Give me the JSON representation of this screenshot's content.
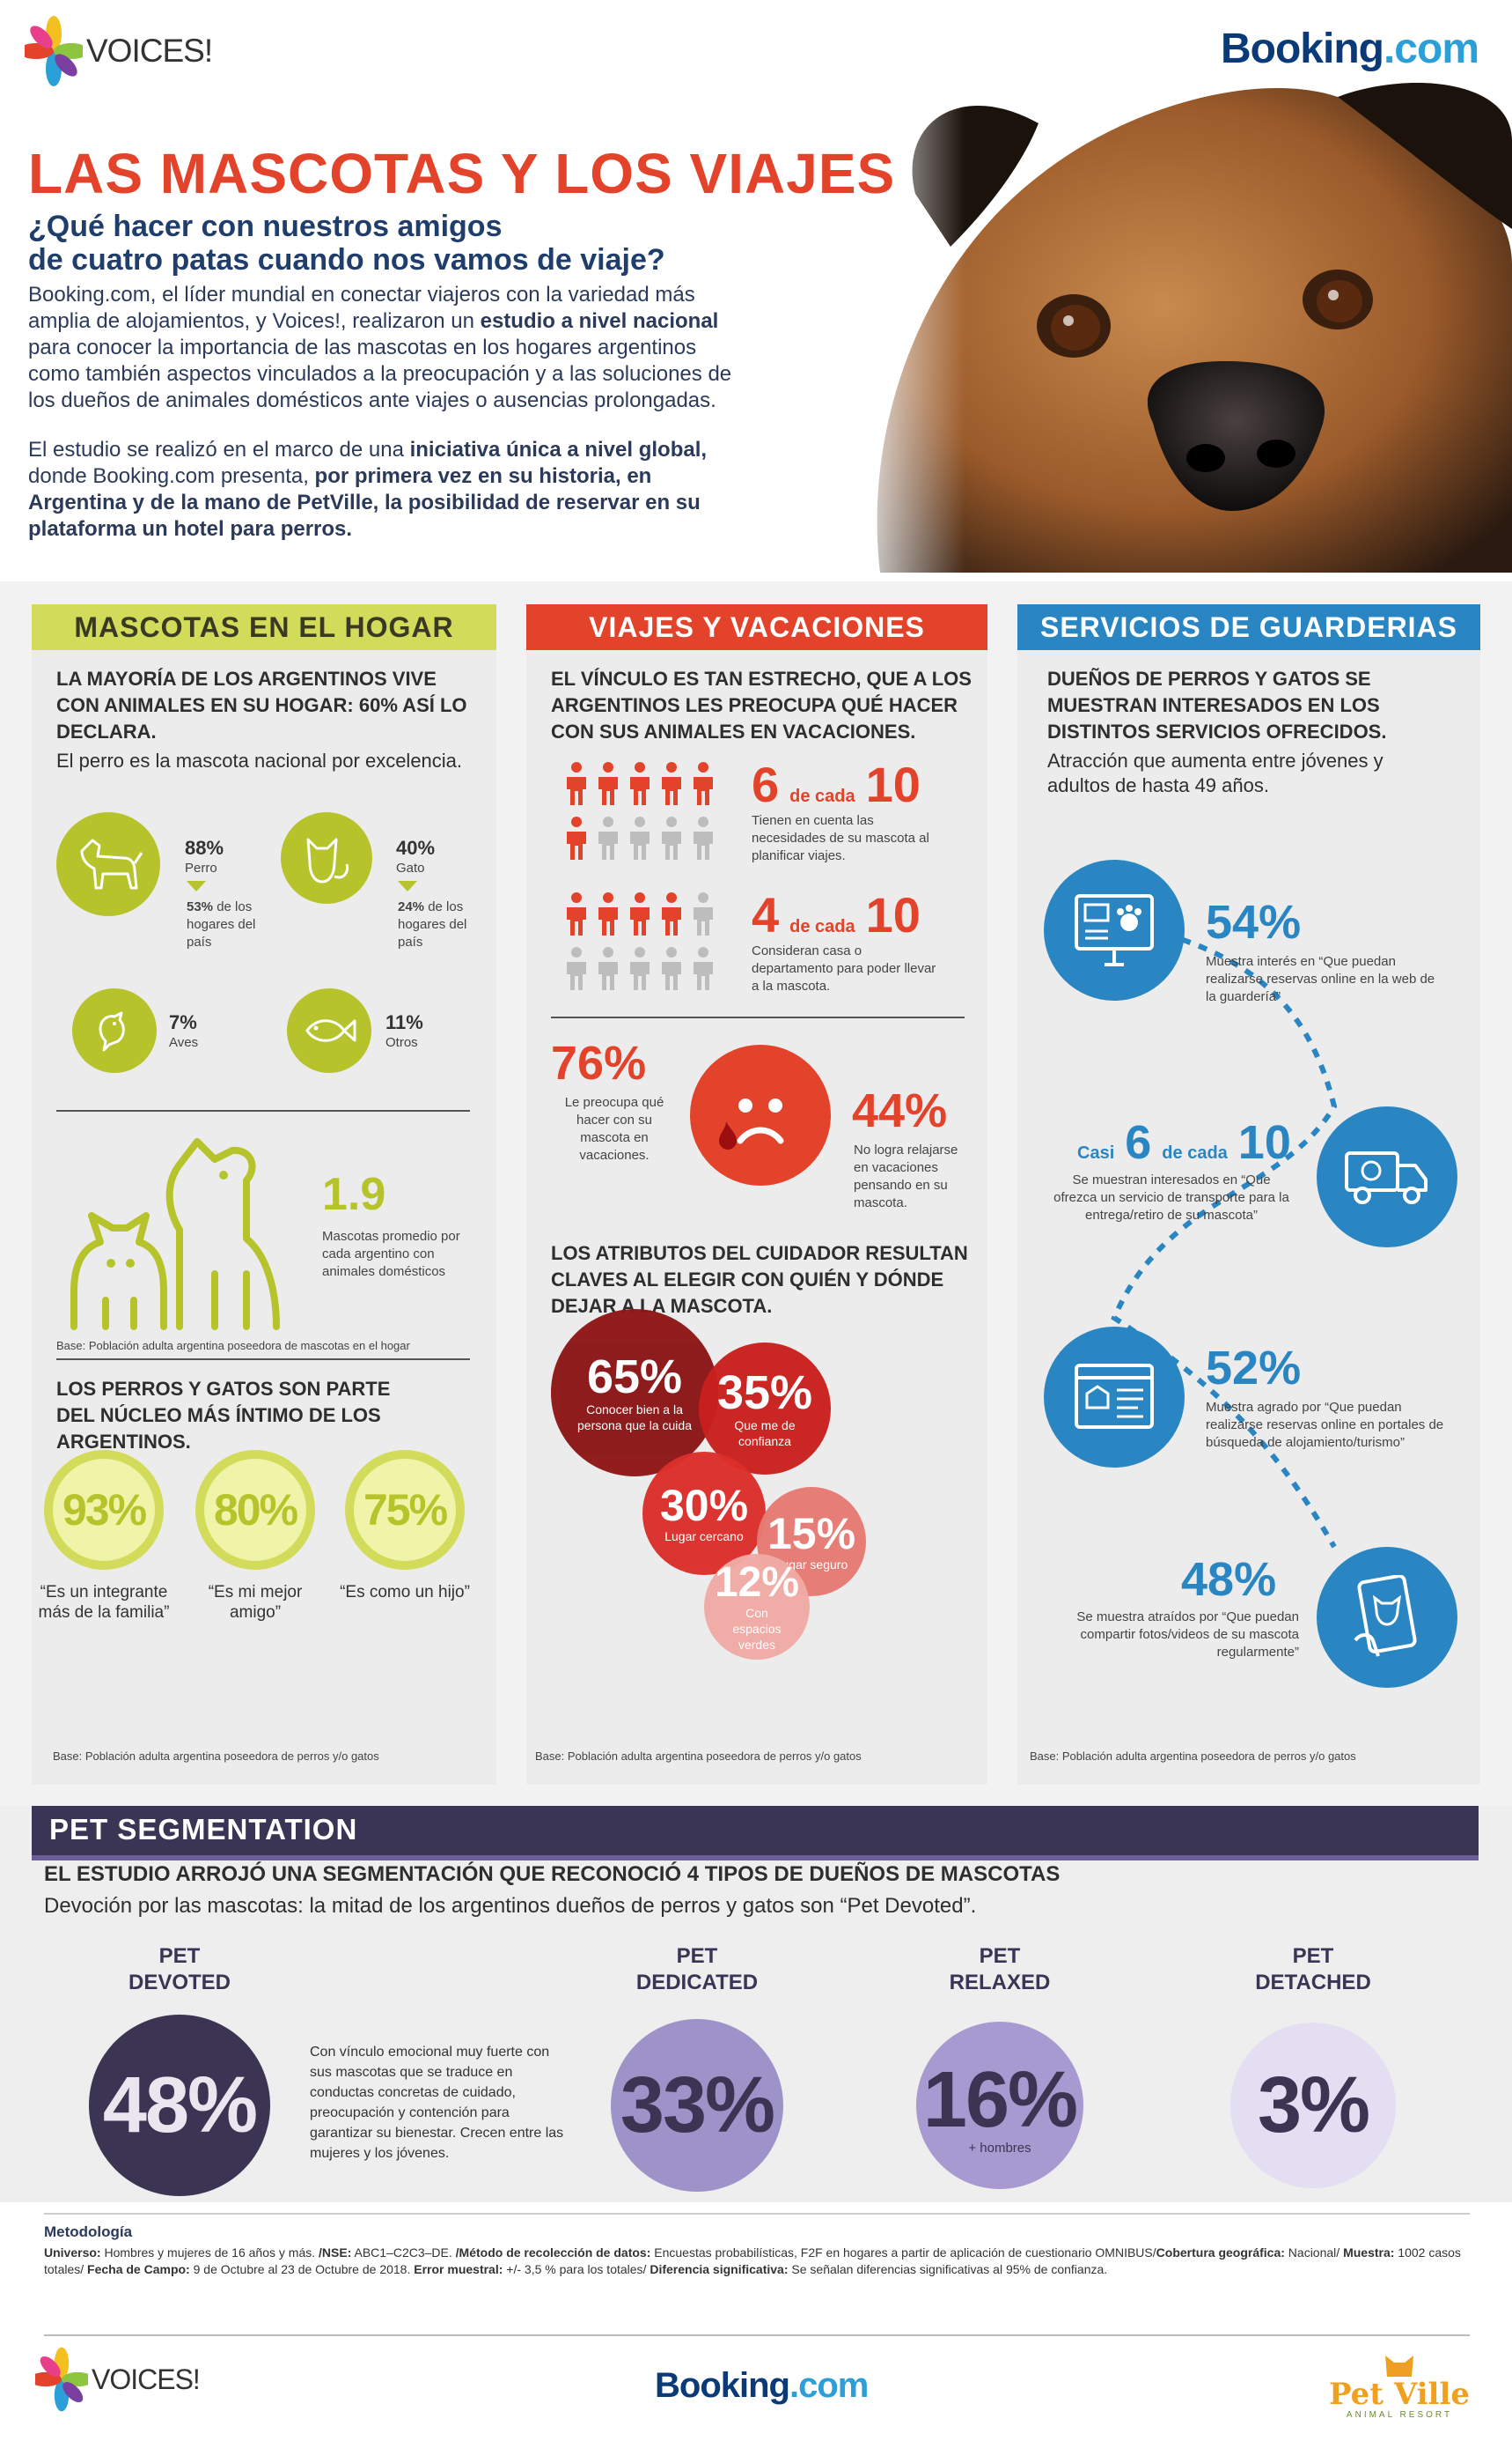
{
  "header": {
    "voices_logo": "VOICES!",
    "booking_logo_main": "Booking",
    "booking_logo_dot": ".com",
    "title": "LAS MASCOTAS Y LOS VIAJES",
    "subtitle_line1": "¿Qué hacer con nuestros amigos",
    "subtitle_line2": "de cuatro patas cuando nos vamos de viaje?",
    "intro1_a": "Booking.com, el líder mundial en conectar viajeros con la variedad más amplia de alojamientos, y Voices!, realizaron un ",
    "intro1_b": "estudio a nivel nacional",
    "intro1_c": " para conocer la importancia de las mascotas en los hogares argentinos como también aspectos vinculados a la preocupación y a las soluciones de los dueños de animales domésticos ante viajes o ausencias prolongadas.",
    "intro2_a": "El estudio se realizó en el marco de una ",
    "intro2_b": "iniciativa única a nivel global,",
    "intro2_c": " donde Booking.com presenta, ",
    "intro2_d": "por primera vez en su historia, en Argentina y de la mano de PetVille, la posibilidad de reservar en su plataforma un hotel para perros."
  },
  "col1": {
    "header": "MASCOTAS EN EL HOGAR",
    "lead": "LA MAYORÍA DE LOS ARGENTINOS VIVE CON ANIMALES EN SU HOGAR: 60% ASÍ LO DECLARA.",
    "sub": "El perro es la mascota nacional por excelencia.",
    "dog_pct": "88%",
    "dog_label": "Perro",
    "dog_homes_pct": "53%",
    "dog_homes_text": " de los hogares del país",
    "cat_pct": "40%",
    "cat_label": "Gato",
    "cat_homes_pct": "24%",
    "cat_homes_text": " de los hogares del país",
    "bird_pct": "7%",
    "bird_label": "Aves",
    "fish_pct": "11%",
    "fish_label": "Otros",
    "avg_value": "1.9",
    "avg_text": "Mascotas promedio por cada argentino con animales domésticos",
    "base1": "Base: Población adulta argentina poseedora de mascotas en el hogar",
    "lead2": "LOS PERROS Y GATOS SON PARTE DEL NÚCLEO MÁS ÍNTIMO DE LOS ARGENTINOS.",
    "rings": [
      {
        "pct": "93%",
        "label": "“Es un integrante más de la familia”"
      },
      {
        "pct": "80%",
        "label": "“Es mi mejor amigo”"
      },
      {
        "pct": "75%",
        "label": "“Es como un hijo”"
      }
    ],
    "base2": "Base: Población adulta argentina poseedora de perros y/o gatos",
    "color": "#b6c32b"
  },
  "col2": {
    "header": "VIAJES Y VACACIONES",
    "lead": "EL VÍNCULO ES TAN ESTRECHO, QUE A LOS ARGENTINOS LES PREOCUPA QUÉ HACER CON SUS ANIMALES EN VACACIONES.",
    "stat1_num": "6",
    "stat1_mid": "de cada",
    "stat1_den": "10",
    "stat1_text": "Tienen en cuenta las necesidades de su mascota al planificar viajes.",
    "stat2_num": "4",
    "stat2_mid": "de cada",
    "stat2_den": "10",
    "stat2_text": "Consideran casa o departamento para poder llevar a la mascota.",
    "worry_pct": "76%",
    "worry_text": "Le preocupa qué hacer con su mascota en vacaciones.",
    "relax_pct": "44%",
    "relax_text": "No logra relajarse en vacaciones pensando en su mascota.",
    "lead2": "LOS ATRIBUTOS DEL CUIDADOR RESULTAN CLAVES AL ELEGIR CON QUIÉN Y DÓNDE DEJAR A LA MASCOTA.",
    "bubbles": [
      {
        "pct": "65%",
        "label": "Conocer bien a la persona que la cuida",
        "color": "#8d1616"
      },
      {
        "pct": "35%",
        "label": "Que me de confianza",
        "color": "#c8201e"
      },
      {
        "pct": "30%",
        "label": "Lugar cercano",
        "color": "#dc2f2a"
      },
      {
        "pct": "15%",
        "label": "Lugar seguro",
        "color": "#e77a74"
      },
      {
        "pct": "12%",
        "label": "Con espacios verdes",
        "color": "#f1aaa5"
      }
    ],
    "base": "Base: Población adulta argentina poseedora de perros y/o gatos",
    "color": "#e2432a"
  },
  "col3": {
    "header": "SERVICIOS DE GUARDERIAS",
    "lead": "DUEÑOS DE PERROS Y GATOS SE MUESTRAN INTERESADOS EN LOS DISTINTOS SERVICIOS OFRECIDOS.",
    "sub": "Atracción que aumenta entre jóvenes y adultos de hasta 49 años.",
    "s1_pct": "54%",
    "s1_text": "Muestra interés en “Que puedan realizarse reservas online en la web de la guardería”",
    "s2_pre": "Casi",
    "s2_num": "6",
    "s2_mid": "de cada",
    "s2_den": "10",
    "s2_text": "Se muestran interesados en “Que ofrezca un servicio de transporte para la entrega/retiro de su mascota”",
    "s3_pct": "52%",
    "s3_text": "Muestra agrado por “Que puedan realizarse reservas online en portales de búsqueda de alojamiento/turismo”",
    "s4_pct": "48%",
    "s4_text": "Se muestra atraídos por “Que puedan compartir fotos/videos de su mascota regularmente”",
    "base": "Base: Población adulta argentina poseedora de perros y/o gatos",
    "color": "#2a86c2"
  },
  "segmentation": {
    "header": "PET SEGMENTATION",
    "lead": "EL ESTUDIO ARROJÓ UNA SEGMENTACIÓN QUE RECONOCIÓ 4 TIPOS DE DUEÑOS DE MASCOTAS",
    "sub": "Devoción por las mascotas: la mitad de los argentinos dueños de perros y gatos son “Pet Devoted”.",
    "segments": [
      {
        "label1": "PET",
        "label2": "DEVOTED",
        "pct": "48%",
        "color": "#3b3553",
        "text_color": "#e9e6f0",
        "note": ""
      },
      {
        "label1": "PET",
        "label2": "DEDICATED",
        "pct": "33%",
        "color": "#9d93c9",
        "text_color": "#3b3553",
        "note": ""
      },
      {
        "label1": "PET",
        "label2": "RELAXED",
        "pct": "16%",
        "color": "#a79ad0",
        "text_color": "#3b3553",
        "note": "+ hombres"
      },
      {
        "label1": "PET",
        "label2": "DETACHED",
        "pct": "3%",
        "color": "#e4def2",
        "text_color": "#3b3553",
        "note": ""
      }
    ],
    "devoted_text": "Con vínculo emocional muy fuerte con sus mascotas que se traduce en conductas concretas de cuidado, preocupación y contención para garantizar su bienestar. Crecen entre las mujeres y los jóvenes."
  },
  "methodology": {
    "title": "Metodología",
    "universo_label": "Universo:",
    "universo": " Hombres y mujeres de 16 años y más. ",
    "nse_label": "/NSE:",
    "nse": " ABC1–C2C3–DE. ",
    "metodo_label": "/Método de recolección de datos:",
    "metodo": " Encuestas probabilísticas, F2F en hogares a partir de aplicación de cuestionario OMNIBUS/",
    "cobertura_label": "Cobertura geográfica:",
    "cobertura": " Nacional/ ",
    "muestra_label": "Muestra:",
    "muestra": " 1002 casos totales/ ",
    "fecha_label": "Fecha de Campo:",
    "fecha": " 9 de Octubre al 23 de Octubre de 2018. ",
    "error_label": "Error muestral:",
    "error": " +/- 3,5 % para los totales/ ",
    "dif_label": "Diferencia significativa:",
    "dif": " Se señalan diferencias significativas al 95% de confianza."
  },
  "footer": {
    "voices_logo": "VOICES!",
    "booking_main": "Booking",
    "booking_dot": ".com",
    "petville_logo": "Pet Ville",
    "petville_sub": "ANIMAL RESORT"
  }
}
